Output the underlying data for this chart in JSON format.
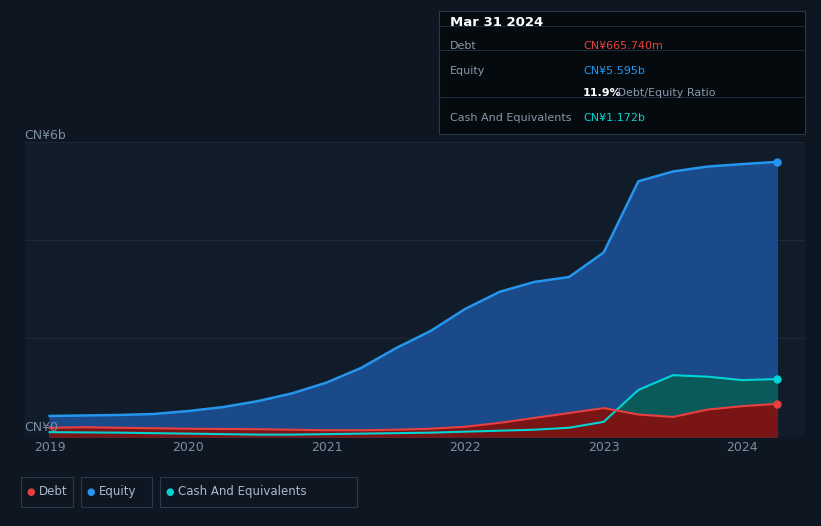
{
  "background_color": "#0e1621",
  "plot_bg_color": "#111c2b",
  "grid_color": "#1a2a3a",
  "x_years": [
    2019.0,
    2019.25,
    2019.5,
    2019.75,
    2020.0,
    2020.25,
    2020.5,
    2020.75,
    2021.0,
    2021.25,
    2021.5,
    2021.75,
    2022.0,
    2022.25,
    2022.5,
    2022.75,
    2023.0,
    2023.25,
    2023.5,
    2023.75,
    2024.0,
    2024.25
  ],
  "equity": [
    0.42,
    0.43,
    0.44,
    0.46,
    0.52,
    0.6,
    0.72,
    0.88,
    1.1,
    1.4,
    1.8,
    2.15,
    2.6,
    2.95,
    3.15,
    3.25,
    3.75,
    5.2,
    5.4,
    5.5,
    5.55,
    5.595
  ],
  "debt": [
    0.18,
    0.19,
    0.18,
    0.17,
    0.16,
    0.155,
    0.15,
    0.14,
    0.13,
    0.13,
    0.14,
    0.16,
    0.2,
    0.28,
    0.38,
    0.48,
    0.58,
    0.45,
    0.4,
    0.55,
    0.62,
    0.6657
  ],
  "cash": [
    0.09,
    0.085,
    0.08,
    0.07,
    0.06,
    0.05,
    0.04,
    0.04,
    0.05,
    0.06,
    0.07,
    0.08,
    0.1,
    0.12,
    0.14,
    0.18,
    0.3,
    0.95,
    1.25,
    1.22,
    1.15,
    1.172
  ],
  "equity_color": "#2496ed",
  "debt_color": "#e84040",
  "cash_color": "#00d4d4",
  "equity_fill": "#1a4a8a",
  "debt_fill": "#7a1515",
  "cash_fill": "#0a5a5a",
  "ylim": [
    0,
    6
  ],
  "xtick_labels": [
    "2019",
    "2020",
    "2021",
    "2022",
    "2023",
    "2024"
  ],
  "xtick_positions": [
    2019,
    2020,
    2021,
    2022,
    2023,
    2024
  ],
  "ylabel_top": "CN¥6b",
  "ylabel_bottom": "CN¥0",
  "tooltip_title": "Mar 31 2024",
  "tooltip_debt_label": "Debt",
  "tooltip_debt_value": "CN¥665.740m",
  "tooltip_equity_label": "Equity",
  "tooltip_equity_value": "CN¥5.595b",
  "tooltip_ratio": "11.9%",
  "tooltip_ratio_label": " Debt/Equity Ratio",
  "tooltip_cash_label": "Cash And Equivalents",
  "tooltip_cash_value": "CN¥1.172b",
  "legend_items": [
    {
      "label": "Debt",
      "color": "#e84040"
    },
    {
      "label": "Equity",
      "color": "#2496ed"
    },
    {
      "label": "Cash And Equivalents",
      "color": "#00d4d4"
    }
  ]
}
